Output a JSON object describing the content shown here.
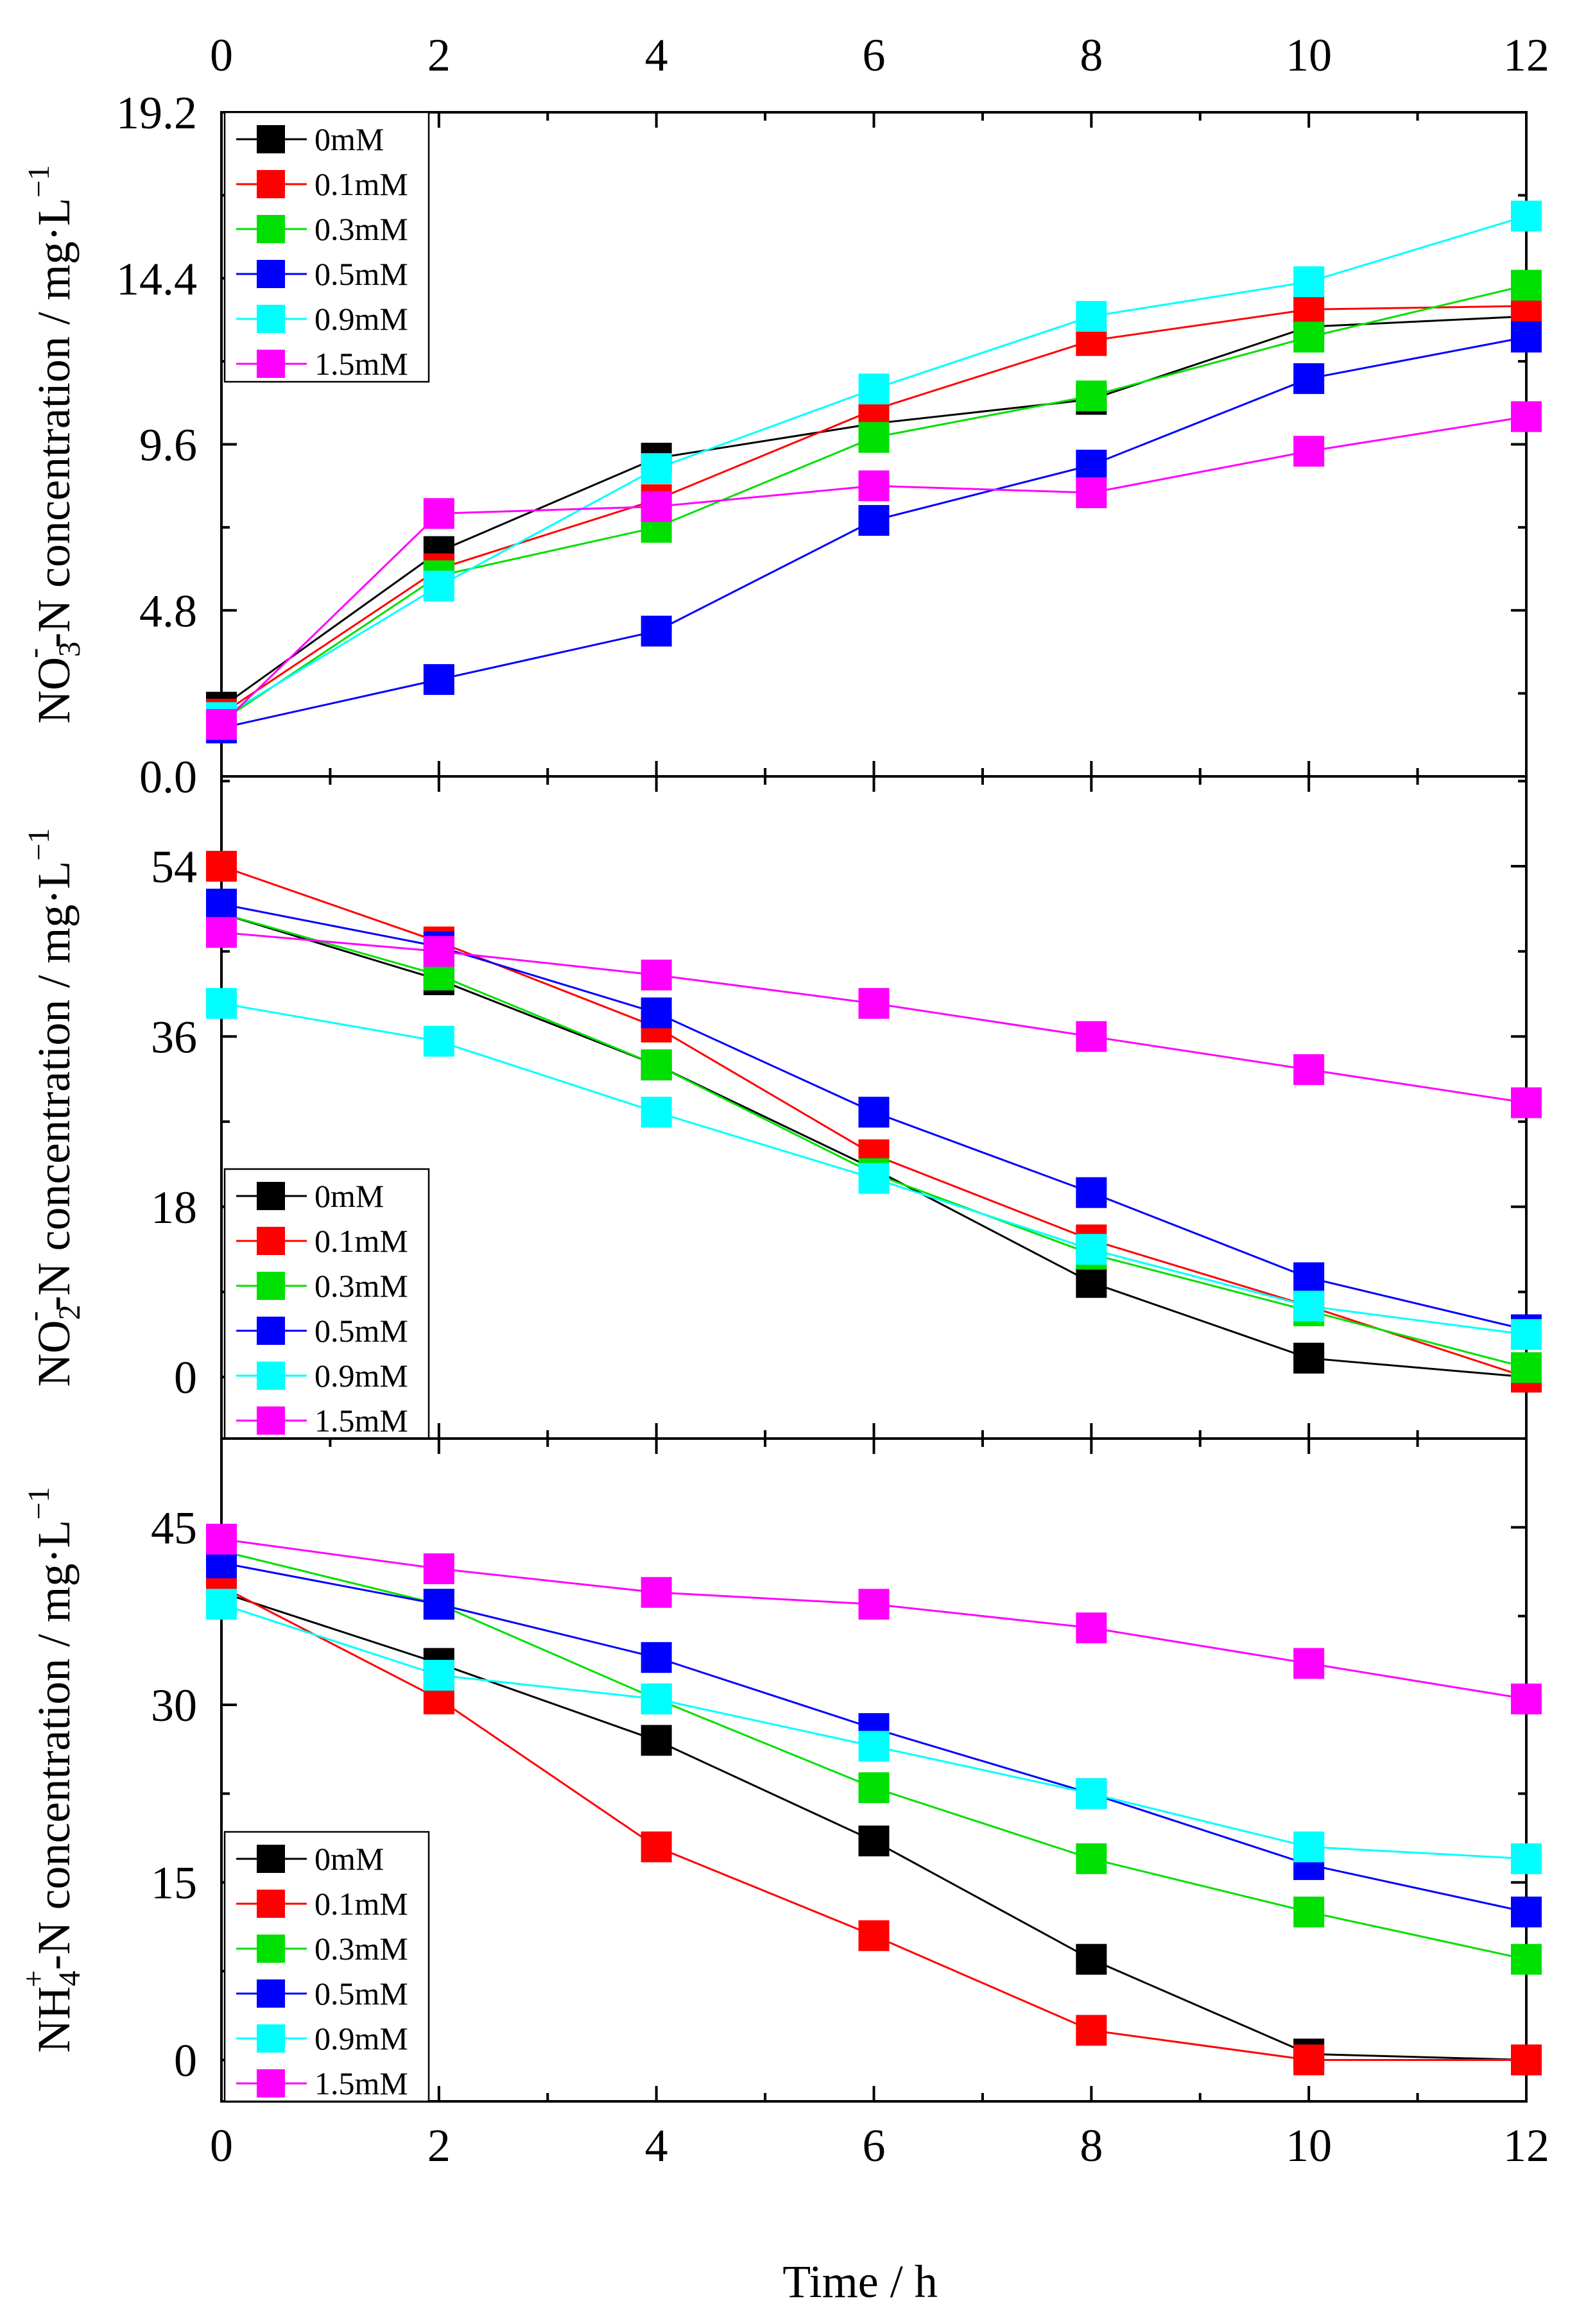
{
  "figure": {
    "x_axis_label": "Time / h",
    "x_ticks": [
      "0",
      "2",
      "4",
      "6",
      "8",
      "10",
      "12"
    ]
  },
  "legend": {
    "entries": [
      "0mM",
      "0.1mM",
      "0.3mM",
      "0.5mM",
      "0.9mM",
      "1.5mM"
    ],
    "colors": [
      "#000000",
      "#ff0000",
      "#00e000",
      "#0000ff",
      "#00ffff",
      "#ff00ff"
    ]
  },
  "chart_data": [
    {
      "type": "line",
      "ylabel": "NO3--N concentration / mg·L-1",
      "ylabel_parts": {
        "pre": "NO",
        "sub": "3",
        "sup": "-",
        "mid": "-N concentration / mg·L",
        "sup2": "−1"
      },
      "xlim": [
        0,
        12
      ],
      "ylim": [
        0,
        19.2
      ],
      "yticks": [
        0,
        4.8,
        9.6,
        14.4,
        19.2
      ],
      "ytick_labels": [
        "0.0",
        "4.8",
        "9.6",
        "14.4",
        "19.2"
      ],
      "legend_position": "top-left",
      "x": [
        0,
        2,
        4,
        6,
        8,
        10,
        12
      ],
      "series": [
        {
          "name": "0mM",
          "color": "#000000",
          "values": [
            2.0,
            6.5,
            9.2,
            10.2,
            10.9,
            13.0,
            13.3
          ]
        },
        {
          "name": "0.1mM",
          "color": "#ff0000",
          "values": [
            1.8,
            6.0,
            8.0,
            10.6,
            12.6,
            13.5,
            13.6
          ]
        },
        {
          "name": "0.3mM",
          "color": "#00e000",
          "values": [
            1.6,
            5.8,
            7.2,
            9.8,
            11.0,
            12.7,
            14.2
          ]
        },
        {
          "name": "0.5mM",
          "color": "#0000ff",
          "values": [
            1.4,
            2.8,
            4.2,
            7.4,
            9.0,
            11.5,
            12.7
          ]
        },
        {
          "name": "0.9mM",
          "color": "#00ffff",
          "values": [
            1.7,
            5.5,
            8.9,
            11.2,
            13.3,
            14.3,
            16.2
          ]
        },
        {
          "name": "1.5mM",
          "color": "#ff00ff",
          "values": [
            1.5,
            7.6,
            7.8,
            8.4,
            8.2,
            9.4,
            10.4
          ]
        }
      ]
    },
    {
      "type": "line",
      "ylabel": "NO2--N concentration / mg·L-1",
      "ylabel_parts": {
        "pre": "NO",
        "sub": "2",
        "sup": "-",
        "mid": "-N concentration / mg·L",
        "sup2": "−1"
      },
      "xlim": [
        0,
        12
      ],
      "ylim": [
        -6.5,
        63.5
      ],
      "yticks": [
        0,
        18,
        36,
        54
      ],
      "ytick_labels": [
        "0",
        "18",
        "36",
        "54"
      ],
      "legend_position": "bottom-left",
      "x": [
        0,
        2,
        4,
        6,
        8,
        10,
        12
      ],
      "series": [
        {
          "name": "0mM",
          "color": "#000000",
          "values": [
            49.0,
            42.0,
            33.0,
            22.0,
            10.0,
            2.0,
            0.0
          ]
        },
        {
          "name": "0.1mM",
          "color": "#ff0000",
          "values": [
            54.0,
            46.0,
            37.0,
            23.5,
            14.5,
            7.5,
            0.0
          ]
        },
        {
          "name": "0.3mM",
          "color": "#00e000",
          "values": [
            49.0,
            42.5,
            33.0,
            21.5,
            13.0,
            7.0,
            1.0
          ]
        },
        {
          "name": "0.5mM",
          "color": "#0000ff",
          "values": [
            50.0,
            45.5,
            38.5,
            28.0,
            19.5,
            10.5,
            5.0
          ]
        },
        {
          "name": "0.9mM",
          "color": "#00ffff",
          "values": [
            39.5,
            35.5,
            28.0,
            21.0,
            13.5,
            7.5,
            4.5
          ]
        },
        {
          "name": "1.5mM",
          "color": "#ff00ff",
          "values": [
            47.0,
            45.0,
            42.5,
            39.5,
            36.0,
            32.5,
            29.0
          ]
        }
      ]
    },
    {
      "type": "line",
      "ylabel": "NH4+-N concentration / mg·L-1",
      "ylabel_parts": {
        "pre": "NH",
        "sub": "4",
        "sup": "+",
        "mid": "-N concentration / mg·L",
        "sup2": "−1"
      },
      "xlim": [
        0,
        12
      ],
      "ylim": [
        -3.5,
        52.5
      ],
      "yticks": [
        0,
        15,
        30,
        45
      ],
      "ytick_labels": [
        "0",
        "15",
        "30",
        "45"
      ],
      "legend_position": "bottom-left",
      "x": [
        0,
        2,
        4,
        6,
        8,
        10,
        12
      ],
      "series": [
        {
          "name": "0mM",
          "color": "#000000",
          "values": [
            39.5,
            33.5,
            27.0,
            18.5,
            8.5,
            0.5,
            0.0
          ]
        },
        {
          "name": "0.1mM",
          "color": "#ff0000",
          "values": [
            40.0,
            30.5,
            18.0,
            10.5,
            2.5,
            0.0,
            0.0
          ]
        },
        {
          "name": "0.3mM",
          "color": "#00e000",
          "values": [
            43.0,
            38.5,
            30.5,
            23.0,
            17.0,
            12.5,
            8.5
          ]
        },
        {
          "name": "0.5mM",
          "color": "#0000ff",
          "values": [
            42.0,
            38.5,
            34.0,
            28.0,
            22.5,
            16.5,
            12.5
          ]
        },
        {
          "name": "0.9mM",
          "color": "#00ffff",
          "values": [
            38.5,
            32.5,
            30.5,
            26.5,
            22.5,
            18.0,
            17.0
          ]
        },
        {
          "name": "1.5mM",
          "color": "#ff00ff",
          "values": [
            44.0,
            41.5,
            39.5,
            38.5,
            36.5,
            33.5,
            30.5
          ]
        }
      ]
    }
  ]
}
